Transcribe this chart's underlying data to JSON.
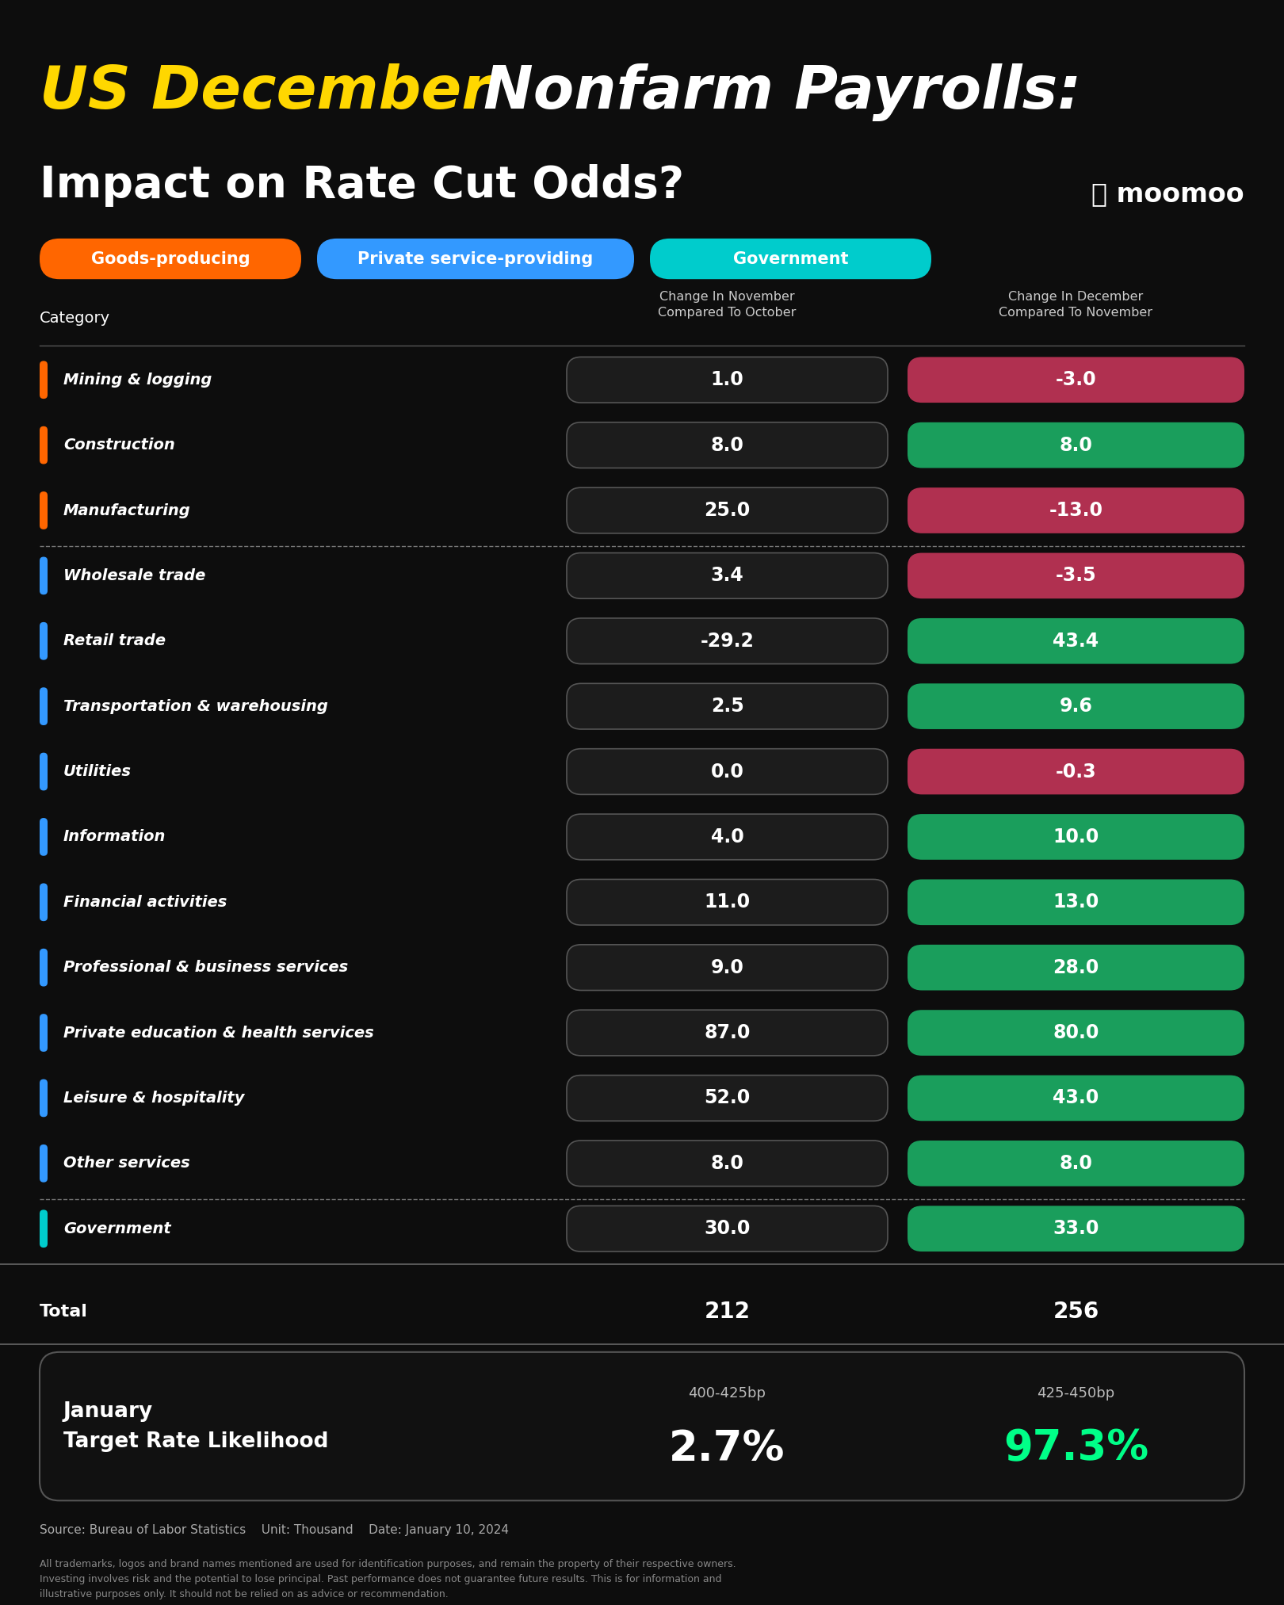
{
  "title_yellow": "US December ",
  "title_white": "Nonfarm Payrolls:",
  "title_line2": "Impact on Rate Cut Odds?",
  "title_yellow_color": "#FFD700",
  "title_white_color": "#FFFFFF",
  "title_line2_color": "#FFFFFF",
  "bg_color": "#0d0d0d",
  "legend_labels": [
    "Goods-producing",
    "Private service-providing",
    "Government"
  ],
  "legend_colors": [
    "#FF6600",
    "#3399FF",
    "#00CCCC"
  ],
  "col_header1": "Change In November\nCompared To October",
  "col_header2": "Change In December\nCompared To November",
  "categories": [
    "Mining & logging",
    "Construction",
    "Manufacturing",
    "Wholesale trade",
    "Retail trade",
    "Transportation & warehousing",
    "Utilities",
    "Information",
    "Financial activities",
    "Professional & business services",
    "Private education & health services",
    "Leisure & hospitality",
    "Other services",
    "Government"
  ],
  "category_colors": [
    "#FF6600",
    "#FF6600",
    "#FF6600",
    "#3399FF",
    "#3399FF",
    "#3399FF",
    "#3399FF",
    "#3399FF",
    "#3399FF",
    "#3399FF",
    "#3399FF",
    "#3399FF",
    "#3399FF",
    "#00CCCC"
  ],
  "nov_display": [
    "1.0",
    "8.0",
    "25.0",
    "3.4",
    "-29.2",
    "2.5",
    "0.0",
    "4.0",
    "11.0",
    "9.0",
    "87.0",
    "52.0",
    "8.0",
    "30.0"
  ],
  "dec_display": [
    "-3.0",
    "8.0",
    "-13.0",
    "-3.5",
    "43.4",
    "9.6",
    "-0.3",
    "10.0",
    "13.0",
    "28.0",
    "80.0",
    "43.0",
    "8.0",
    "33.0"
  ],
  "dec_values": [
    -3.0,
    8.0,
    -13.0,
    -3.5,
    43.4,
    9.6,
    -0.3,
    10.0,
    13.0,
    28.0,
    80.0,
    43.0,
    8.0,
    33.0
  ],
  "total_nov": "212",
  "total_dec": "256",
  "dashed_after": [
    2,
    12
  ],
  "green_color": "#1a9e5c",
  "red_color": "#b03050",
  "dark_cell_color": "#1c1c1c",
  "cell_border_color": "#555555",
  "rate_box_bg": "#111111",
  "rate_box_border": "#555555",
  "rate_label": "January\nTarget Rate Likelihood",
  "rate_col1_header": "400-425bp",
  "rate_col2_header": "425-450bp",
  "rate_col1_value": "2.7%",
  "rate_col2_value": "97.3%",
  "rate_col1_color": "#FFFFFF",
  "rate_col2_color": "#00FF88",
  "source_text": "Source: Bureau of Labor Statistics    Unit: Thousand    Date: January 10, 2024",
  "disclaimer_text": "All trademarks, logos and brand names mentioned are used for identification purposes, and remain the property of their respective owners.\nInvesting involves risk and the potential to lose principal. Past performance does not guarantee future results. This is for information and\nillustrative purposes only. It should not be relied on as advice or recommendation."
}
